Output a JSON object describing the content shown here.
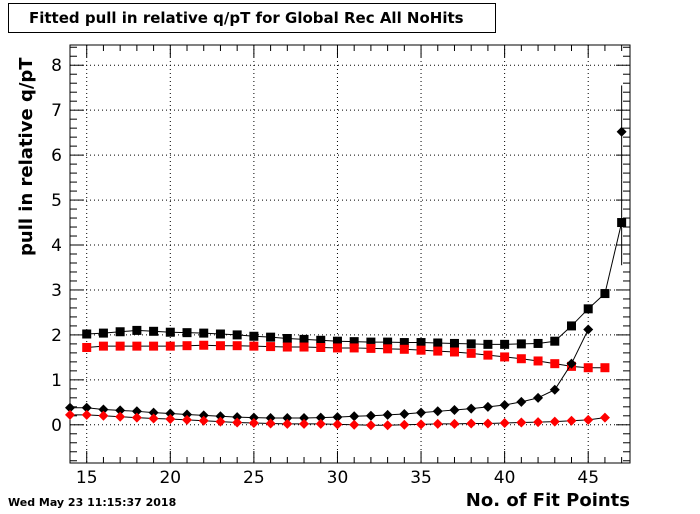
{
  "title": "Fitted pull in relative q/pT for Global Rec All NoHits",
  "timestamp": "Wed May 23 11:15:37 2018",
  "chart_data": {
    "type": "scatter",
    "title": "Fitted pull in relative q/pT for Global Rec All NoHits",
    "xlabel": "No. of Fit Points",
    "ylabel": "pull in relative q/pT",
    "xlim": [
      14,
      47.5
    ],
    "ylim": [
      -0.85,
      8.45
    ],
    "xticks": [
      15,
      20,
      25,
      30,
      35,
      40,
      45
    ],
    "yticks": [
      0,
      1,
      2,
      3,
      4,
      5,
      6,
      7,
      8
    ],
    "grid": true,
    "series": [
      {
        "marker": "square",
        "color": "#000000",
        "x": [
          15,
          16,
          17,
          18,
          19,
          20,
          21,
          22,
          23,
          24,
          25,
          26,
          27,
          28,
          29,
          30,
          31,
          32,
          33,
          34,
          35,
          36,
          37,
          38,
          39,
          40,
          41,
          42,
          43,
          44,
          45,
          46,
          47
        ],
        "y": [
          2.02,
          2.04,
          2.07,
          2.1,
          2.08,
          2.06,
          2.05,
          2.04,
          2.02,
          2.0,
          1.97,
          1.95,
          1.92,
          1.9,
          1.88,
          1.86,
          1.85,
          1.84,
          1.84,
          1.83,
          1.83,
          1.82,
          1.81,
          1.8,
          1.79,
          1.79,
          1.8,
          1.81,
          1.86,
          2.2,
          2.58,
          2.92,
          4.5
        ]
      },
      {
        "marker": "square",
        "color": "#ff0000",
        "x": [
          15,
          16,
          17,
          18,
          19,
          20,
          21,
          22,
          23,
          24,
          25,
          26,
          27,
          28,
          29,
          30,
          31,
          32,
          33,
          34,
          35,
          36,
          37,
          38,
          39,
          40,
          41,
          42,
          43,
          44,
          45,
          46
        ],
        "y": [
          1.72,
          1.75,
          1.75,
          1.75,
          1.75,
          1.75,
          1.76,
          1.77,
          1.76,
          1.76,
          1.75,
          1.74,
          1.73,
          1.73,
          1.72,
          1.71,
          1.71,
          1.7,
          1.69,
          1.68,
          1.66,
          1.64,
          1.62,
          1.59,
          1.55,
          1.51,
          1.47,
          1.42,
          1.36,
          1.3,
          1.27,
          1.27
        ]
      },
      {
        "marker": "diamond",
        "color": "#000000",
        "x": [
          14,
          15,
          16,
          17,
          18,
          19,
          20,
          21,
          22,
          23,
          24,
          25,
          26,
          27,
          28,
          29,
          30,
          31,
          32,
          33,
          34,
          35,
          36,
          37,
          38,
          39,
          40,
          41,
          42,
          43,
          44,
          45,
          47
        ],
        "y": [
          0.38,
          0.38,
          0.34,
          0.32,
          0.3,
          0.27,
          0.25,
          0.23,
          0.21,
          0.19,
          0.17,
          0.16,
          0.15,
          0.15,
          0.15,
          0.16,
          0.17,
          0.19,
          0.2,
          0.22,
          0.24,
          0.27,
          0.3,
          0.33,
          0.36,
          0.4,
          0.44,
          0.51,
          0.6,
          0.78,
          1.36,
          2.12,
          6.52
        ]
      },
      {
        "marker": "diamond",
        "color": "#ff0000",
        "x": [
          14,
          15,
          16,
          17,
          18,
          19,
          20,
          21,
          22,
          23,
          24,
          25,
          26,
          27,
          28,
          29,
          30,
          31,
          32,
          33,
          34,
          35,
          36,
          37,
          38,
          39,
          40,
          41,
          42,
          43,
          44,
          45,
          46
        ],
        "y": [
          0.22,
          0.22,
          0.2,
          0.18,
          0.16,
          0.14,
          0.13,
          0.11,
          0.09,
          0.07,
          0.05,
          0.04,
          0.03,
          0.02,
          0.02,
          0.02,
          0.01,
          0.0,
          -0.01,
          -0.01,
          0.0,
          0.01,
          0.02,
          0.02,
          0.03,
          0.03,
          0.04,
          0.05,
          0.06,
          0.07,
          0.09,
          0.11,
          0.16
        ]
      }
    ],
    "error_bars": [
      {
        "series": 0,
        "x": 47,
        "low": 3.55,
        "high": 5.45
      },
      {
        "series": 2,
        "x": 47,
        "low": 5.45,
        "high": 7.55
      }
    ]
  }
}
